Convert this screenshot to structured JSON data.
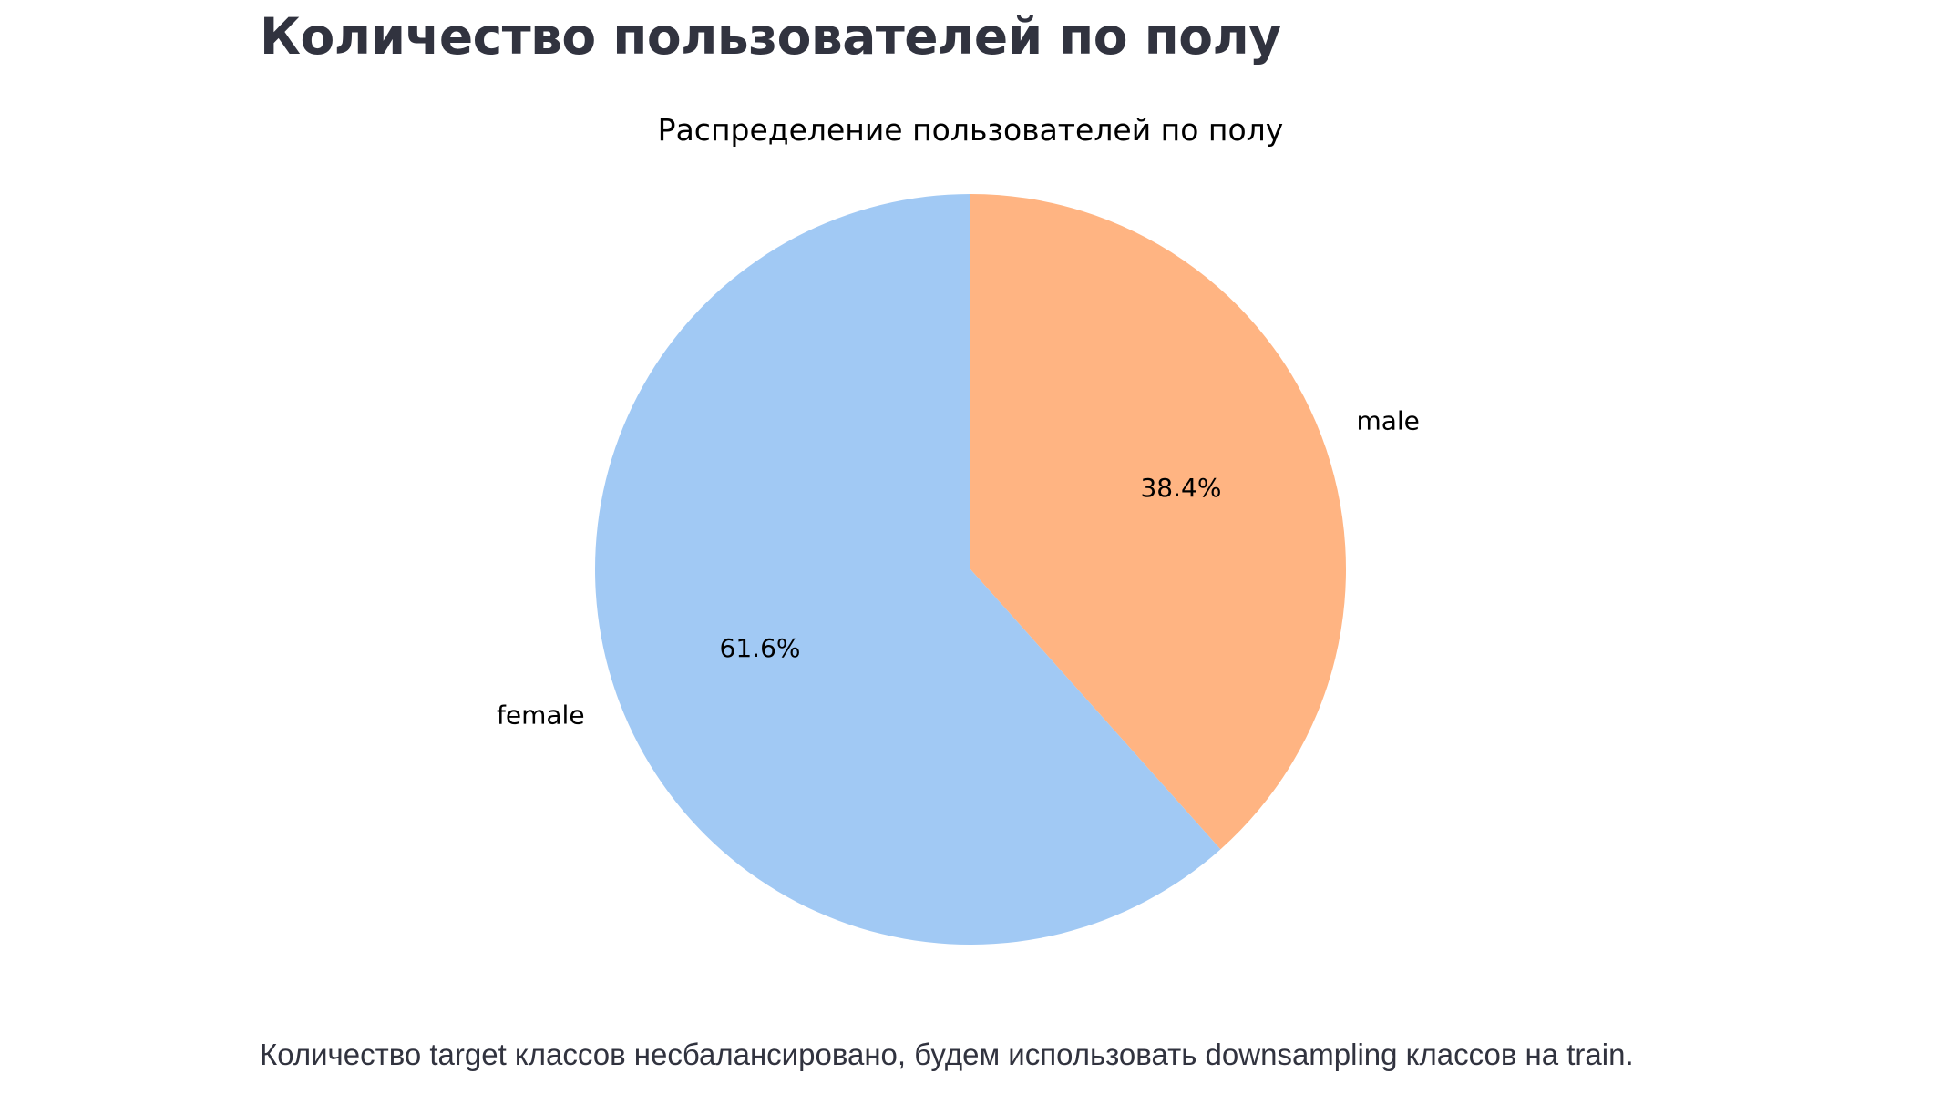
{
  "page": {
    "title": "Количество пользователей по полу",
    "note": "Количество target классов несбалансировано, будем использовать downsampling классов на train."
  },
  "chart_data": {
    "type": "pie",
    "title": "Распределение пользователей по полу",
    "categories": [
      "male",
      "female"
    ],
    "values": [
      38.4,
      61.6
    ],
    "value_labels": [
      "38.4%",
      "61.6%"
    ],
    "colors": [
      "#ffb482",
      "#a1c9f4"
    ],
    "start_angle": "top",
    "direction": "clockwise"
  }
}
